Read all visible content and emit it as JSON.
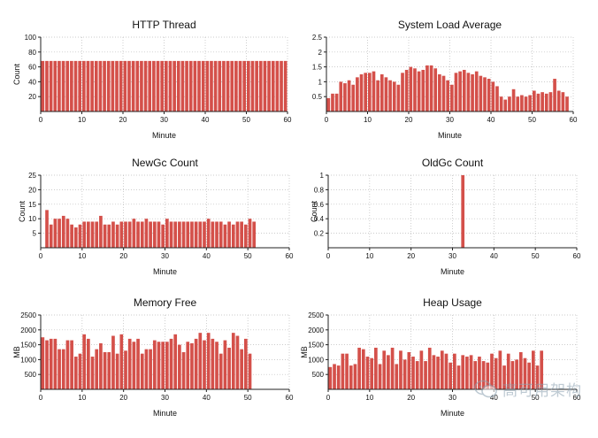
{
  "dashboard": {
    "watermark": "高可用架构"
  },
  "chart_data": [
    {
      "type": "bar",
      "title": "HTTP Thread",
      "xlabel": "Minute",
      "ylabel": "Count",
      "xlim": [
        0,
        60
      ],
      "ylim": [
        0,
        100
      ],
      "yticks": [
        20,
        40,
        60,
        80,
        100
      ],
      "yticklabels": [
        "20",
        "40",
        "60",
        "80",
        "100"
      ],
      "xticks": [
        0,
        10,
        20,
        30,
        40,
        50,
        60
      ],
      "grid": true,
      "color": "#d4504a",
      "values": [
        68,
        68,
        68,
        68,
        68,
        68,
        68,
        68,
        68,
        68,
        68,
        68,
        68,
        68,
        68,
        68,
        68,
        68,
        68,
        68,
        68,
        68,
        68,
        68,
        68,
        68,
        68,
        68,
        68,
        68,
        68,
        68,
        68,
        68,
        68,
        68,
        68,
        68,
        68,
        68,
        68,
        68,
        68,
        68,
        68,
        68,
        68,
        68,
        68,
        68,
        68,
        68,
        68,
        68,
        68,
        68,
        68,
        68,
        68,
        68
      ]
    },
    {
      "type": "bar",
      "title": "System Load Average",
      "xlabel": "Minute",
      "ylabel": "",
      "xlim": [
        0,
        60
      ],
      "ylim": [
        0,
        2.5
      ],
      "yticks": [
        0.5,
        1,
        1.5,
        2,
        2.5
      ],
      "yticklabels": [
        "0.5",
        "1",
        "1.5",
        "2",
        "2.5"
      ],
      "xticks": [
        0,
        10,
        20,
        30,
        40,
        50,
        60
      ],
      "grid": true,
      "color": "#d4504a",
      "values": [
        0.45,
        0.6,
        0.6,
        1.0,
        0.95,
        1.05,
        0.9,
        1.15,
        1.25,
        1.3,
        1.3,
        1.35,
        1.05,
        1.25,
        1.15,
        1.05,
        1.0,
        0.9,
        1.3,
        1.4,
        1.5,
        1.45,
        1.35,
        1.4,
        1.55,
        1.55,
        1.45,
        1.25,
        1.2,
        1.05,
        0.9,
        1.3,
        1.35,
        1.4,
        1.3,
        1.25,
        1.35,
        1.2,
        1.15,
        1.1,
        1.0,
        0.85,
        0.5,
        0.4,
        0.5,
        0.75,
        0.5,
        0.55,
        0.5,
        0.55,
        0.7,
        0.6,
        0.65,
        0.6,
        0.65,
        1.1,
        0.7,
        0.65,
        0.5,
        0
      ]
    },
    {
      "type": "bar",
      "title": "NewGc Count",
      "xlabel": "Minute",
      "ylabel": "Count",
      "xlim": [
        0,
        60
      ],
      "ylim": [
        0,
        25
      ],
      "yticks": [
        5,
        10,
        15,
        20,
        25
      ],
      "yticklabels": [
        "5",
        "10",
        "15",
        "20",
        "25"
      ],
      "xticks": [
        0,
        10,
        20,
        30,
        40,
        50,
        60
      ],
      "grid": true,
      "color": "#d4504a",
      "values": [
        0,
        13,
        8,
        10,
        10,
        11,
        10,
        8,
        7,
        8,
        9,
        9,
        9,
        9,
        11,
        8,
        8,
        9,
        8,
        9,
        9,
        9,
        10,
        9,
        9,
        10,
        9,
        9,
        9,
        8,
        10,
        9,
        9,
        9,
        9,
        9,
        9,
        9,
        9,
        9,
        10,
        9,
        9,
        9,
        8,
        9,
        8,
        9,
        9,
        8,
        10,
        9,
        0,
        0,
        0,
        0,
        0,
        0,
        0,
        0
      ]
    },
    {
      "type": "bar",
      "title": "OldGc Count",
      "xlabel": "Minute",
      "ylabel": "Count",
      "xlim": [
        0,
        60
      ],
      "ylim": [
        0,
        1
      ],
      "yticks": [
        0.2,
        0.4,
        0.6,
        0.8,
        1
      ],
      "yticklabels": [
        "0.2",
        "0.4",
        "0.6",
        "0.8",
        "1"
      ],
      "xticks": [
        0,
        10,
        20,
        30,
        40,
        50,
        60
      ],
      "grid": true,
      "color": "#d4504a",
      "values": [
        0,
        0,
        0,
        0,
        0,
        0,
        0,
        0,
        0,
        0,
        0,
        0,
        0,
        0,
        0,
        0,
        0,
        0,
        0,
        0,
        0,
        0,
        0,
        0,
        0,
        0,
        0,
        0,
        0,
        0,
        0,
        0,
        1,
        0,
        0,
        0,
        0,
        0,
        0,
        0,
        0,
        0,
        0,
        0,
        0,
        0,
        0,
        0,
        0,
        0,
        0,
        0,
        0,
        0,
        0,
        0,
        0,
        0,
        0,
        0
      ]
    },
    {
      "type": "bar",
      "title": "Memory Free",
      "xlabel": "Minute",
      "ylabel": "MB",
      "xlim": [
        0,
        60
      ],
      "ylim": [
        0,
        2500
      ],
      "yticks": [
        500,
        1000,
        1500,
        2000,
        2500
      ],
      "yticklabels": [
        "500",
        "1000",
        "1500",
        "2000",
        "2500"
      ],
      "xticks": [
        0,
        10,
        20,
        30,
        40,
        50,
        60
      ],
      "grid": true,
      "color": "#d4504a",
      "values": [
        1750,
        1650,
        1700,
        1700,
        1350,
        1350,
        1650,
        1650,
        1100,
        1200,
        1850,
        1700,
        1100,
        1350,
        1550,
        1250,
        1250,
        1800,
        1200,
        1850,
        1300,
        1700,
        1600,
        1700,
        1200,
        1350,
        1350,
        1650,
        1600,
        1600,
        1600,
        1700,
        1850,
        1500,
        1250,
        1600,
        1550,
        1700,
        1900,
        1650,
        1900,
        1700,
        1600,
        1200,
        1650,
        1400,
        1900,
        1800,
        1350,
        1700,
        1200,
        0,
        0,
        0,
        0,
        0,
        0,
        0,
        0,
        0
      ]
    },
    {
      "type": "bar",
      "title": "Heap Usage",
      "xlabel": "Minute",
      "ylabel": "MB",
      "xlim": [
        0,
        60
      ],
      "ylim": [
        0,
        2500
      ],
      "yticks": [
        500,
        1000,
        1500,
        2000,
        2500
      ],
      "yticklabels": [
        "500",
        "1000",
        "1500",
        "2000",
        "2500"
      ],
      "xticks": [
        0,
        10,
        20,
        30,
        40,
        50,
        60
      ],
      "grid": true,
      "color": "#d4504a",
      "values": [
        750,
        850,
        800,
        1200,
        1200,
        800,
        850,
        1400,
        1350,
        1100,
        1050,
        1400,
        850,
        1300,
        1150,
        1400,
        850,
        1300,
        1000,
        1250,
        1100,
        950,
        1300,
        950,
        1400,
        1150,
        1100,
        1300,
        1200,
        900,
        1200,
        800,
        1150,
        1100,
        1150,
        950,
        1100,
        950,
        900,
        1200,
        1050,
        1300,
        800,
        1200,
        950,
        1000,
        1250,
        1050,
        900,
        1300,
        800,
        1300,
        0,
        0,
        0,
        0,
        0,
        0,
        0,
        0
      ]
    }
  ]
}
